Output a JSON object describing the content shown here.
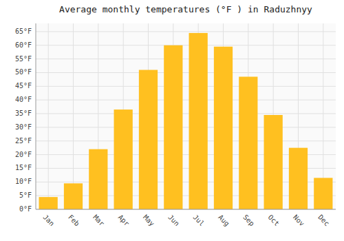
{
  "chart_data": {
    "type": "bar",
    "title": "Average monthly temperatures (°F ) in Raduzhnyy",
    "categories": [
      "Jan",
      "Feb",
      "Mar",
      "Apr",
      "May",
      "Jun",
      "Jul",
      "Aug",
      "Sep",
      "Oct",
      "Nov",
      "Dec"
    ],
    "values": [
      4.5,
      9.5,
      22,
      36.5,
      51,
      60,
      64.5,
      59.5,
      48.5,
      34.5,
      22.5,
      11.5
    ],
    "color": "#FFC020",
    "ylim": [
      0,
      68
    ],
    "yticks": [
      {
        "value": 0,
        "label": "0°F"
      },
      {
        "value": 5,
        "label": "5°F"
      },
      {
        "value": 10,
        "label": "10°F"
      },
      {
        "value": 15,
        "label": "15°F"
      },
      {
        "value": 20,
        "label": "20°F"
      },
      {
        "value": 25,
        "label": "25°F"
      },
      {
        "value": 30,
        "label": "30°F"
      },
      {
        "value": 35,
        "label": "35°F"
      },
      {
        "value": 40,
        "label": "40°F"
      },
      {
        "value": 45,
        "label": "45°F"
      },
      {
        "value": 50,
        "label": "50°F"
      },
      {
        "value": 55,
        "label": "55°F"
      },
      {
        "value": 60,
        "label": "60°F"
      },
      {
        "value": 65,
        "label": "65°F"
      }
    ],
    "grid": true
  }
}
